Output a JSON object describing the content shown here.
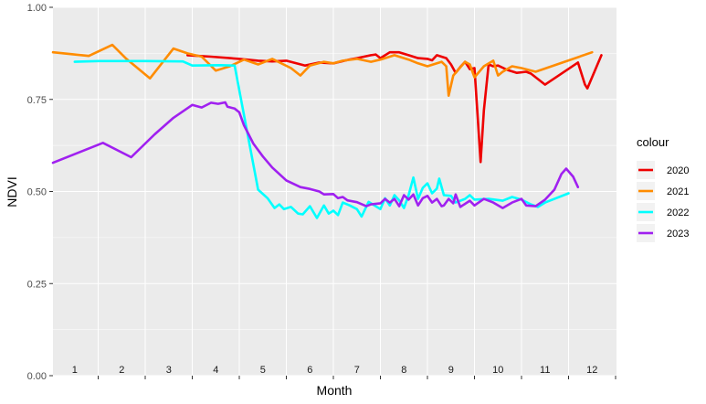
{
  "chart_data": {
    "type": "line",
    "xlabel": "Month",
    "ylabel": "NDVI",
    "xlim": [
      0,
      12
    ],
    "ylim": [
      0,
      1
    ],
    "yticks": [
      "0.00",
      "0.25",
      "0.50",
      "0.75",
      "1.00"
    ],
    "month_labels": [
      "1",
      "2",
      "3",
      "4",
      "5",
      "6",
      "7",
      "8",
      "9",
      "10",
      "11",
      "12"
    ],
    "grid": true,
    "legend_title": "colour",
    "legend_position": "right",
    "series": [
      {
        "name": "2020",
        "color": "#ee0000",
        "points": [
          [
            2.9,
            0.87
          ],
          [
            3.4,
            0.866
          ],
          [
            4.0,
            0.86
          ],
          [
            4.4,
            0.855
          ],
          [
            4.7,
            0.853
          ],
          [
            5.0,
            0.855
          ],
          [
            5.4,
            0.842
          ],
          [
            5.7,
            0.85
          ],
          [
            6.0,
            0.848
          ],
          [
            6.3,
            0.857
          ],
          [
            6.5,
            0.862
          ],
          [
            6.8,
            0.87
          ],
          [
            6.9,
            0.872
          ],
          [
            7.0,
            0.862
          ],
          [
            7.2,
            0.878
          ],
          [
            7.4,
            0.878
          ],
          [
            7.6,
            0.87
          ],
          [
            7.8,
            0.862
          ],
          [
            8.0,
            0.86
          ],
          [
            8.1,
            0.856
          ],
          [
            8.2,
            0.87
          ],
          [
            8.4,
            0.862
          ],
          [
            8.5,
            0.845
          ],
          [
            8.6,
            0.822
          ],
          [
            8.7,
            0.838
          ],
          [
            8.8,
            0.852
          ],
          [
            8.9,
            0.832
          ],
          [
            9.0,
            0.835
          ],
          [
            9.07,
            0.7
          ],
          [
            9.13,
            0.58
          ],
          [
            9.2,
            0.72
          ],
          [
            9.3,
            0.845
          ],
          [
            9.4,
            0.84
          ],
          [
            9.5,
            0.842
          ],
          [
            9.7,
            0.83
          ],
          [
            9.9,
            0.822
          ],
          [
            10.1,
            0.825
          ],
          [
            10.2,
            0.82
          ],
          [
            10.5,
            0.79
          ],
          [
            11.2,
            0.85
          ],
          [
            11.35,
            0.79
          ],
          [
            11.4,
            0.78
          ],
          [
            11.7,
            0.87
          ]
        ]
      },
      {
        "name": "2021",
        "color": "#ff8c00",
        "points": [
          [
            0.0,
            0.878
          ],
          [
            0.8,
            0.868
          ],
          [
            1.3,
            0.898
          ],
          [
            1.6,
            0.86
          ],
          [
            2.1,
            0.807
          ],
          [
            2.6,
            0.888
          ],
          [
            2.9,
            0.875
          ],
          [
            3.2,
            0.866
          ],
          [
            3.5,
            0.828
          ],
          [
            3.8,
            0.84
          ],
          [
            4.1,
            0.858
          ],
          [
            4.4,
            0.845
          ],
          [
            4.7,
            0.86
          ],
          [
            5.1,
            0.835
          ],
          [
            5.3,
            0.815
          ],
          [
            5.5,
            0.842
          ],
          [
            5.8,
            0.852
          ],
          [
            6.0,
            0.848
          ],
          [
            6.2,
            0.855
          ],
          [
            6.5,
            0.86
          ],
          [
            6.8,
            0.852
          ],
          [
            7.0,
            0.858
          ],
          [
            7.3,
            0.87
          ],
          [
            7.6,
            0.858
          ],
          [
            7.8,
            0.848
          ],
          [
            8.0,
            0.84
          ],
          [
            8.3,
            0.852
          ],
          [
            8.4,
            0.84
          ],
          [
            8.45,
            0.76
          ],
          [
            8.55,
            0.815
          ],
          [
            8.8,
            0.852
          ],
          [
            8.9,
            0.845
          ],
          [
            9.0,
            0.81
          ],
          [
            9.2,
            0.84
          ],
          [
            9.4,
            0.855
          ],
          [
            9.5,
            0.815
          ],
          [
            9.6,
            0.825
          ],
          [
            9.8,
            0.84
          ],
          [
            10.0,
            0.835
          ],
          [
            10.3,
            0.825
          ],
          [
            11.5,
            0.878
          ]
        ]
      },
      {
        "name": "2022",
        "color": "#00ffff",
        "points": [
          [
            0.5,
            0.852
          ],
          [
            1.0,
            0.854
          ],
          [
            2.0,
            0.854
          ],
          [
            2.8,
            0.853
          ],
          [
            3.0,
            0.842
          ],
          [
            3.6,
            0.843
          ],
          [
            3.9,
            0.842
          ],
          [
            4.2,
            0.64
          ],
          [
            4.4,
            0.505
          ],
          [
            4.6,
            0.482
          ],
          [
            4.75,
            0.455
          ],
          [
            4.85,
            0.465
          ],
          [
            4.95,
            0.452
          ],
          [
            5.1,
            0.458
          ],
          [
            5.25,
            0.44
          ],
          [
            5.35,
            0.438
          ],
          [
            5.5,
            0.46
          ],
          [
            5.65,
            0.428
          ],
          [
            5.8,
            0.462
          ],
          [
            5.9,
            0.44
          ],
          [
            6.0,
            0.448
          ],
          [
            6.1,
            0.436
          ],
          [
            6.2,
            0.47
          ],
          [
            6.35,
            0.462
          ],
          [
            6.5,
            0.452
          ],
          [
            6.6,
            0.432
          ],
          [
            6.75,
            0.472
          ],
          [
            6.9,
            0.46
          ],
          [
            7.0,
            0.452
          ],
          [
            7.1,
            0.482
          ],
          [
            7.2,
            0.462
          ],
          [
            7.3,
            0.49
          ],
          [
            7.4,
            0.476
          ],
          [
            7.5,
            0.455
          ],
          [
            7.6,
            0.49
          ],
          [
            7.7,
            0.538
          ],
          [
            7.8,
            0.48
          ],
          [
            7.9,
            0.51
          ],
          [
            8.0,
            0.522
          ],
          [
            8.1,
            0.495
          ],
          [
            8.2,
            0.508
          ],
          [
            8.25,
            0.535
          ],
          [
            8.35,
            0.49
          ],
          [
            8.5,
            0.488
          ],
          [
            8.6,
            0.47
          ],
          [
            8.8,
            0.48
          ],
          [
            8.9,
            0.49
          ],
          [
            9.0,
            0.478
          ],
          [
            9.3,
            0.48
          ],
          [
            9.6,
            0.475
          ],
          [
            9.8,
            0.485
          ],
          [
            10.0,
            0.478
          ],
          [
            10.2,
            0.465
          ],
          [
            10.35,
            0.458
          ],
          [
            10.5,
            0.47
          ],
          [
            11.0,
            0.495
          ]
        ]
      },
      {
        "name": "2023",
        "color": "#a020f0",
        "points": [
          [
            -0.2,
            0.578
          ],
          [
            1.1,
            0.632
          ],
          [
            1.7,
            0.593
          ],
          [
            2.2,
            0.655
          ],
          [
            2.6,
            0.7
          ],
          [
            3.0,
            0.735
          ],
          [
            3.2,
            0.728
          ],
          [
            3.4,
            0.741
          ],
          [
            3.55,
            0.738
          ],
          [
            3.7,
            0.742
          ],
          [
            3.75,
            0.73
          ],
          [
            3.9,
            0.725
          ],
          [
            4.0,
            0.715
          ],
          [
            4.1,
            0.68
          ],
          [
            4.3,
            0.63
          ],
          [
            4.5,
            0.595
          ],
          [
            4.7,
            0.565
          ],
          [
            5.0,
            0.53
          ],
          [
            5.3,
            0.512
          ],
          [
            5.5,
            0.507
          ],
          [
            5.7,
            0.5
          ],
          [
            5.8,
            0.492
          ],
          [
            6.0,
            0.493
          ],
          [
            6.1,
            0.482
          ],
          [
            6.2,
            0.485
          ],
          [
            6.3,
            0.476
          ],
          [
            6.5,
            0.471
          ],
          [
            6.7,
            0.46
          ],
          [
            6.8,
            0.465
          ],
          [
            7.0,
            0.468
          ],
          [
            7.1,
            0.48
          ],
          [
            7.2,
            0.47
          ],
          [
            7.3,
            0.48
          ],
          [
            7.4,
            0.46
          ],
          [
            7.5,
            0.49
          ],
          [
            7.6,
            0.478
          ],
          [
            7.7,
            0.492
          ],
          [
            7.8,
            0.462
          ],
          [
            7.9,
            0.482
          ],
          [
            8.0,
            0.488
          ],
          [
            8.1,
            0.47
          ],
          [
            8.2,
            0.48
          ],
          [
            8.3,
            0.46
          ],
          [
            8.35,
            0.462
          ],
          [
            8.45,
            0.48
          ],
          [
            8.55,
            0.468
          ],
          [
            8.6,
            0.492
          ],
          [
            8.7,
            0.458
          ],
          [
            8.9,
            0.475
          ],
          [
            9.0,
            0.462
          ],
          [
            9.2,
            0.48
          ],
          [
            9.4,
            0.47
          ],
          [
            9.6,
            0.455
          ],
          [
            9.8,
            0.47
          ],
          [
            10.0,
            0.48
          ],
          [
            10.1,
            0.462
          ],
          [
            10.3,
            0.46
          ],
          [
            10.5,
            0.478
          ],
          [
            10.7,
            0.505
          ],
          [
            10.85,
            0.548
          ],
          [
            10.95,
            0.562
          ],
          [
            11.1,
            0.54
          ],
          [
            11.2,
            0.512
          ]
        ]
      }
    ]
  }
}
